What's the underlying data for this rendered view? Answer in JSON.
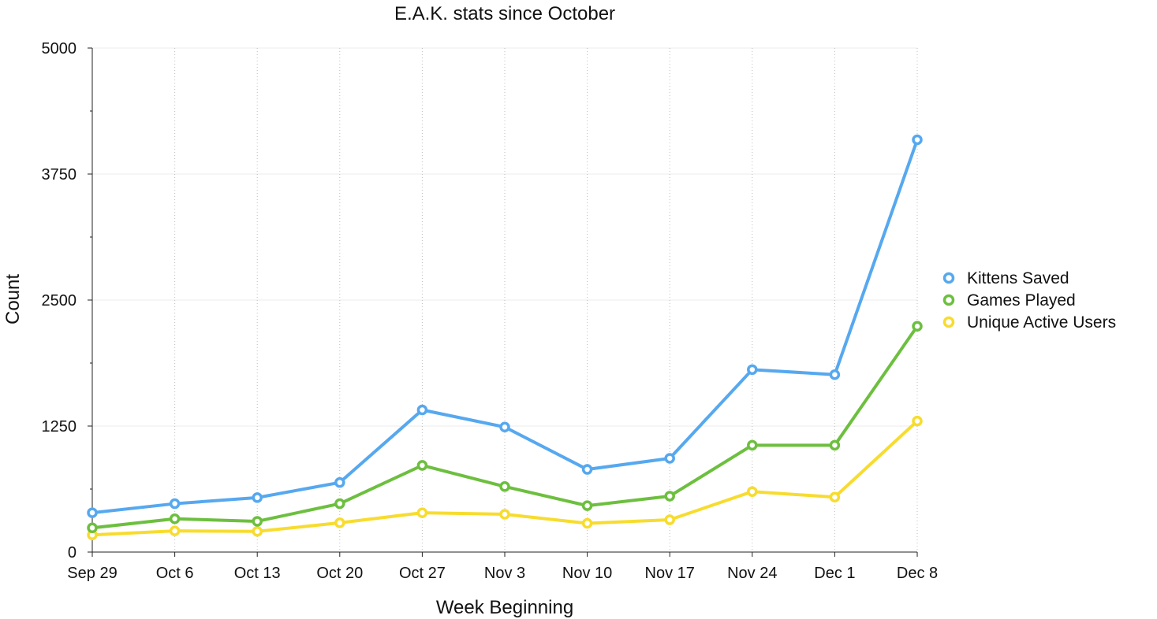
{
  "chart_data": {
    "type": "line",
    "title": "E.A.K. stats since October",
    "xlabel": "Week Beginning",
    "ylabel": "Count",
    "ylim": [
      0,
      5000
    ],
    "yticks": [
      "0",
      "1250",
      "2500",
      "3750",
      "5000"
    ],
    "categories": [
      "Sep 29",
      "Oct 6",
      "Oct 13",
      "Oct 20",
      "Oct 27",
      "Nov 3",
      "Nov 10",
      "Nov 17",
      "Nov 24",
      "Dec 1",
      "Dec 8"
    ],
    "legend_position": "right",
    "grid": "on",
    "series": [
      {
        "name": "Kittens Saved",
        "color": "#56a8ef",
        "values": [
          390,
          480,
          540,
          690,
          1410,
          1240,
          820,
          930,
          1810,
          1760,
          4090
        ]
      },
      {
        "name": "Games Played",
        "color": "#6dbf3f",
        "values": [
          240,
          330,
          305,
          480,
          860,
          650,
          460,
          555,
          1060,
          1060,
          2240
        ]
      },
      {
        "name": "Unique Active Users",
        "color": "#f7dc2e",
        "values": [
          170,
          210,
          205,
          290,
          390,
          375,
          285,
          320,
          600,
          545,
          1300
        ]
      }
    ]
  }
}
